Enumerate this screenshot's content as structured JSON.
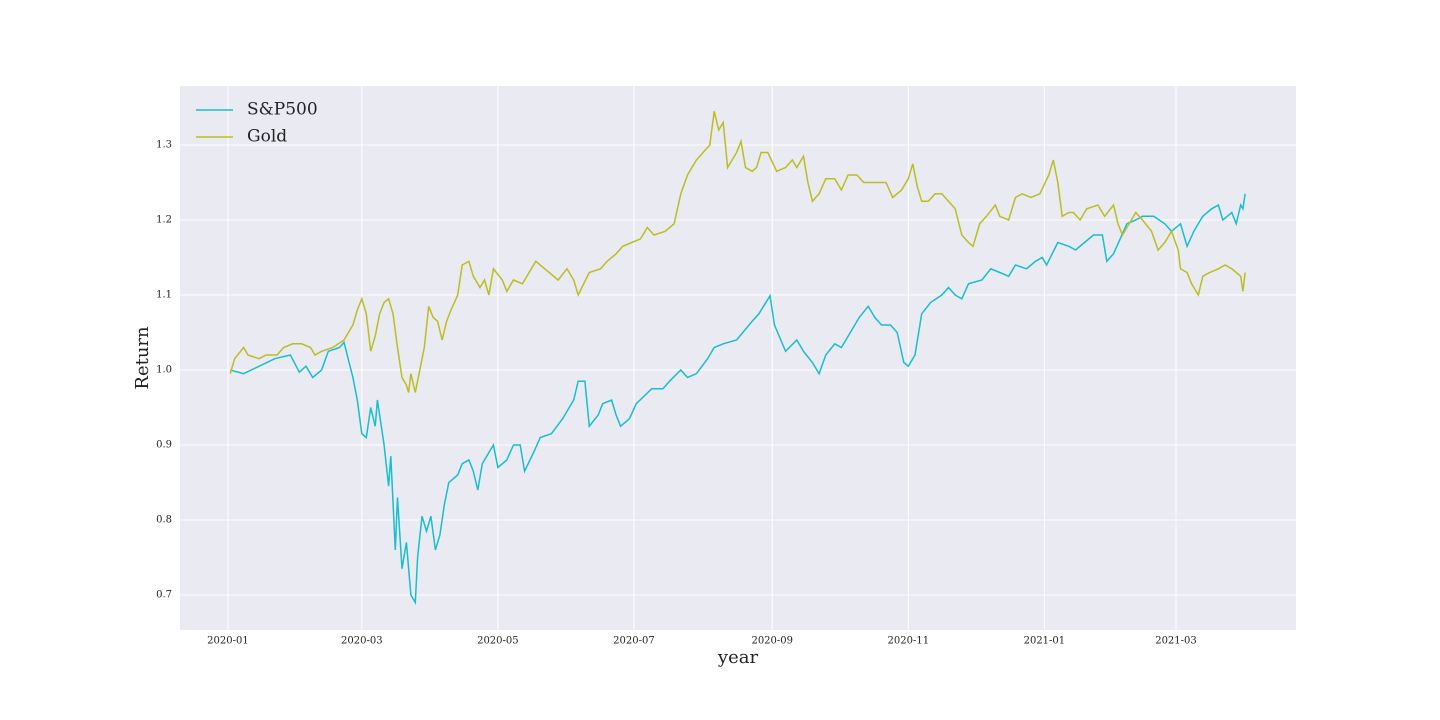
{
  "chart_data": {
    "type": "line",
    "x_label": "year",
    "y_label": "Return",
    "xlim": [
      -21.5,
      478.8
    ],
    "ylim": [
      0.6533,
      1.3787
    ],
    "xticks": [
      {
        "value": 0,
        "label": "2020-01"
      },
      {
        "value": 60,
        "label": "2020-03"
      },
      {
        "value": 121,
        "label": "2020-05"
      },
      {
        "value": 182,
        "label": "2020-07"
      },
      {
        "value": 244,
        "label": "2020-09"
      },
      {
        "value": 305,
        "label": "2020-11"
      },
      {
        "value": 366,
        "label": "2021-01"
      },
      {
        "value": 425,
        "label": "2021-03"
      }
    ],
    "yticks": [
      0.7,
      0.8,
      0.9,
      {
        "value": 1,
        "label": "1.0"
      },
      1.1,
      1.2,
      1.3
    ],
    "grid": true,
    "legend": "upper left",
    "series": [
      {
        "name": "S&P500",
        "color": "#17becf",
        "x": [
          1,
          7,
          14,
          21,
          28,
          32,
          35,
          38,
          42,
          45,
          50,
          52,
          56,
          58,
          60,
          62,
          64,
          66,
          67,
          70,
          72,
          73,
          75,
          76,
          78,
          80,
          82,
          84,
          85,
          87,
          89,
          91,
          93,
          95,
          97,
          99,
          103,
          105,
          108,
          110,
          112,
          114,
          117,
          119,
          121,
          125,
          128,
          131,
          133,
          137,
          140,
          145,
          150,
          155,
          157,
          160,
          162,
          166,
          168,
          172,
          174,
          176,
          180,
          183,
          190,
          195,
          198,
          203,
          206,
          210,
          215,
          218,
          222,
          228,
          235,
          238,
          243,
          245,
          250,
          255,
          258,
          262,
          265,
          268,
          272,
          275,
          278,
          283,
          287,
          290,
          293,
          297,
          300,
          303,
          305,
          308,
          311,
          315,
          320,
          323,
          326,
          329,
          332,
          338,
          342,
          346,
          350,
          353,
          358,
          362,
          365,
          367,
          372,
          377,
          380,
          384,
          388,
          392,
          394,
          397,
          400,
          403,
          407,
          410,
          415,
          420,
          423,
          427,
          430,
          433,
          437,
          441,
          444,
          446,
          450,
          452,
          454,
          455,
          456
        ],
        "values": [
          1.0,
          0.995,
          1.005,
          1.015,
          1.02,
          0.997,
          1.005,
          0.99,
          1.0,
          1.025,
          1.03,
          1.037,
          0.99,
          0.96,
          0.915,
          0.91,
          0.95,
          0.925,
          0.96,
          0.9,
          0.845,
          0.885,
          0.76,
          0.83,
          0.735,
          0.77,
          0.7,
          0.69,
          0.75,
          0.805,
          0.785,
          0.805,
          0.76,
          0.78,
          0.82,
          0.85,
          0.86,
          0.875,
          0.88,
          0.865,
          0.84,
          0.875,
          0.89,
          0.9,
          0.87,
          0.88,
          0.9,
          0.9,
          0.865,
          0.89,
          0.91,
          0.915,
          0.935,
          0.96,
          0.985,
          0.985,
          0.925,
          0.94,
          0.955,
          0.96,
          0.94,
          0.925,
          0.935,
          0.955,
          0.975,
          0.975,
          0.985,
          1.0,
          0.99,
          0.995,
          1.015,
          1.03,
          1.035,
          1.04,
          1.065,
          1.075,
          1.099,
          1.06,
          1.025,
          1.04,
          1.025,
          1.01,
          0.995,
          1.02,
          1.035,
          1.03,
          1.045,
          1.07,
          1.085,
          1.07,
          1.06,
          1.06,
          1.05,
          1.01,
          1.005,
          1.02,
          1.075,
          1.09,
          1.1,
          1.11,
          1.1,
          1.095,
          1.115,
          1.12,
          1.135,
          1.13,
          1.125,
          1.14,
          1.135,
          1.145,
          1.15,
          1.14,
          1.17,
          1.165,
          1.16,
          1.17,
          1.18,
          1.18,
          1.145,
          1.155,
          1.175,
          1.195,
          1.2,
          1.205,
          1.205,
          1.195,
          1.185,
          1.195,
          1.165,
          1.185,
          1.205,
          1.215,
          1.22,
          1.2,
          1.21,
          1.195,
          1.22,
          1.215,
          1.235
        ]
      },
      {
        "name": "Gold",
        "color": "#bcbd22",
        "x": [
          1,
          3,
          7,
          9,
          14,
          17,
          22,
          25,
          29,
          33,
          37,
          39,
          42,
          47,
          52,
          56,
          58,
          60,
          62,
          64,
          66,
          68,
          70,
          72,
          74,
          76,
          78,
          80,
          81,
          82,
          84,
          86,
          88,
          90,
          92,
          94,
          96,
          98,
          100,
          103,
          105,
          108,
          110,
          113,
          115,
          117,
          119,
          123,
          125,
          128,
          132,
          135,
          138,
          142,
          144,
          148,
          152,
          155,
          157,
          162,
          167,
          170,
          174,
          177,
          181,
          185,
          188,
          191,
          196,
          200,
          203,
          206,
          210,
          213,
          216,
          218,
          220,
          222,
          224,
          226,
          228,
          230,
          232,
          235,
          237,
          239,
          242,
          246,
          250,
          253,
          255,
          258,
          260,
          262,
          265,
          268,
          272,
          275,
          278,
          282,
          285,
          290,
          295,
          298,
          302,
          305,
          307,
          309,
          311,
          314,
          317,
          320,
          323,
          326,
          329,
          332,
          334,
          337,
          340,
          344,
          346,
          350,
          353,
          356,
          360,
          364,
          368,
          370,
          372,
          374,
          377,
          379,
          382,
          385,
          390,
          393,
          397,
          399,
          401,
          404,
          407,
          410,
          414,
          417,
          420,
          423,
          426,
          427,
          430,
          432,
          435,
          437,
          440,
          444,
          447,
          450,
          452,
          454,
          455,
          456
        ],
        "values": [
          0.995,
          1.015,
          1.03,
          1.02,
          1.015,
          1.02,
          1.02,
          1.03,
          1.035,
          1.035,
          1.03,
          1.02,
          1.025,
          1.03,
          1.04,
          1.06,
          1.08,
          1.095,
          1.075,
          1.025,
          1.045,
          1.075,
          1.09,
          1.095,
          1.075,
          1.03,
          0.99,
          0.98,
          0.97,
          0.995,
          0.97,
          1.0,
          1.03,
          1.085,
          1.07,
          1.065,
          1.04,
          1.065,
          1.08,
          1.1,
          1.14,
          1.145,
          1.125,
          1.11,
          1.12,
          1.1,
          1.135,
          1.12,
          1.105,
          1.12,
          1.115,
          1.13,
          1.145,
          1.135,
          1.13,
          1.12,
          1.135,
          1.12,
          1.1,
          1.13,
          1.135,
          1.145,
          1.155,
          1.165,
          1.17,
          1.175,
          1.19,
          1.18,
          1.185,
          1.195,
          1.235,
          1.26,
          1.28,
          1.29,
          1.3,
          1.345,
          1.32,
          1.33,
          1.27,
          1.28,
          1.29,
          1.305,
          1.27,
          1.265,
          1.27,
          1.29,
          1.29,
          1.265,
          1.27,
          1.28,
          1.27,
          1.285,
          1.25,
          1.225,
          1.235,
          1.255,
          1.255,
          1.24,
          1.26,
          1.26,
          1.25,
          1.25,
          1.25,
          1.23,
          1.24,
          1.255,
          1.275,
          1.245,
          1.225,
          1.225,
          1.235,
          1.235,
          1.225,
          1.215,
          1.18,
          1.17,
          1.165,
          1.195,
          1.205,
          1.22,
          1.205,
          1.2,
          1.23,
          1.235,
          1.23,
          1.235,
          1.26,
          1.28,
          1.25,
          1.205,
          1.21,
          1.21,
          1.2,
          1.215,
          1.22,
          1.205,
          1.22,
          1.195,
          1.18,
          1.195,
          1.21,
          1.2,
          1.185,
          1.16,
          1.17,
          1.185,
          1.16,
          1.135,
          1.13,
          1.115,
          1.1,
          1.125,
          1.13,
          1.135,
          1.14,
          1.135,
          1.13,
          1.125,
          1.105,
          1.13
        ]
      }
    ]
  }
}
